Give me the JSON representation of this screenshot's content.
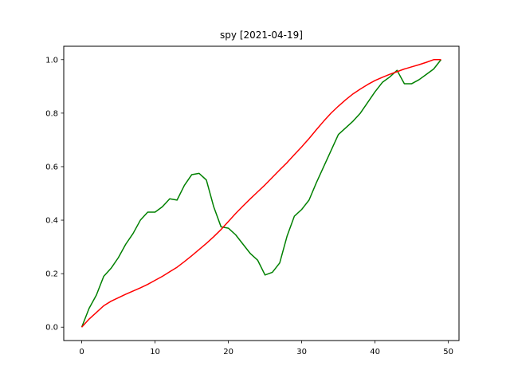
{
  "chart_data": {
    "type": "line",
    "title": "spy [2021-04-19]",
    "xlabel": "",
    "ylabel": "",
    "xlim": [
      -2.45,
      51.45
    ],
    "ylim": [
      -0.05,
      1.05
    ],
    "xticks": [
      0,
      10,
      20,
      30,
      40,
      50
    ],
    "yticks": [
      0.0,
      0.2,
      0.4,
      0.6,
      0.8,
      1.0
    ],
    "xtick_labels": [
      "0",
      "10",
      "20",
      "30",
      "40",
      "50"
    ],
    "ytick_labels": [
      "0.0",
      "0.2",
      "0.4",
      "0.6",
      "0.8",
      "1.0"
    ],
    "grid": false,
    "legend": "none",
    "x": [
      0,
      1,
      2,
      3,
      4,
      5,
      6,
      7,
      8,
      9,
      10,
      11,
      12,
      13,
      14,
      15,
      16,
      17,
      18,
      19,
      20,
      21,
      22,
      23,
      24,
      25,
      26,
      27,
      28,
      29,
      30,
      31,
      32,
      33,
      34,
      35,
      36,
      37,
      38,
      39,
      40,
      41,
      42,
      43,
      44,
      45,
      46,
      47,
      48,
      49
    ],
    "series": [
      {
        "color": "#008000",
        "values": [
          0.0,
          0.07,
          0.12,
          0.19,
          0.22,
          0.26,
          0.31,
          0.35,
          0.4,
          0.43,
          0.43,
          0.45,
          0.48,
          0.475,
          0.53,
          0.57,
          0.575,
          0.55,
          0.45,
          0.375,
          0.37,
          0.345,
          0.31,
          0.275,
          0.25,
          0.195,
          0.205,
          0.24,
          0.34,
          0.415,
          0.44,
          0.475,
          0.54,
          0.6,
          0.66,
          0.72,
          0.745,
          0.77,
          0.8,
          0.84,
          0.88,
          0.915,
          0.935,
          0.96,
          0.91,
          0.91,
          0.925,
          0.945,
          0.965,
          1.0
        ]
      },
      {
        "color": "#ff0000",
        "values": [
          0.0,
          0.03,
          0.055,
          0.08,
          0.097,
          0.11,
          0.123,
          0.135,
          0.147,
          0.16,
          0.175,
          0.19,
          0.207,
          0.224,
          0.245,
          0.267,
          0.29,
          0.313,
          0.338,
          0.365,
          0.395,
          0.425,
          0.453,
          0.48,
          0.506,
          0.532,
          0.56,
          0.588,
          0.615,
          0.645,
          0.674,
          0.705,
          0.738,
          0.77,
          0.8,
          0.826,
          0.85,
          0.872,
          0.89,
          0.907,
          0.922,
          0.934,
          0.945,
          0.955,
          0.965,
          0.973,
          0.981,
          0.99,
          1.0,
          1.0
        ]
      }
    ]
  }
}
